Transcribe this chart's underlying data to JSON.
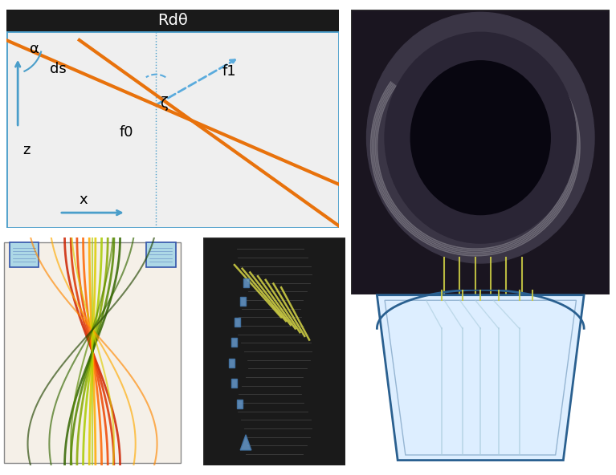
{
  "bg_color": "#ffffff",
  "diagram_bg": "#efefef",
  "diagram_border": "#4a9eca",
  "diagram_title_bg": "#1a1a1a",
  "diagram_title_text": "Rdθ",
  "orange_line_color": "#e8720c",
  "blue_arrow_color": "#4a9eca",
  "dashed_arrow_color": "#5aabdd",
  "labels": {
    "alpha": "α",
    "zeta": "ζ",
    "ds": "ds",
    "f0": "f0",
    "f1": "f1",
    "z": "z",
    "x": "x"
  },
  "spindle_bg": "#ddeeff",
  "spindle_border": "#2a6090",
  "yellow_line_color": "#cccc44",
  "light_blue_line": "#aaccdd"
}
